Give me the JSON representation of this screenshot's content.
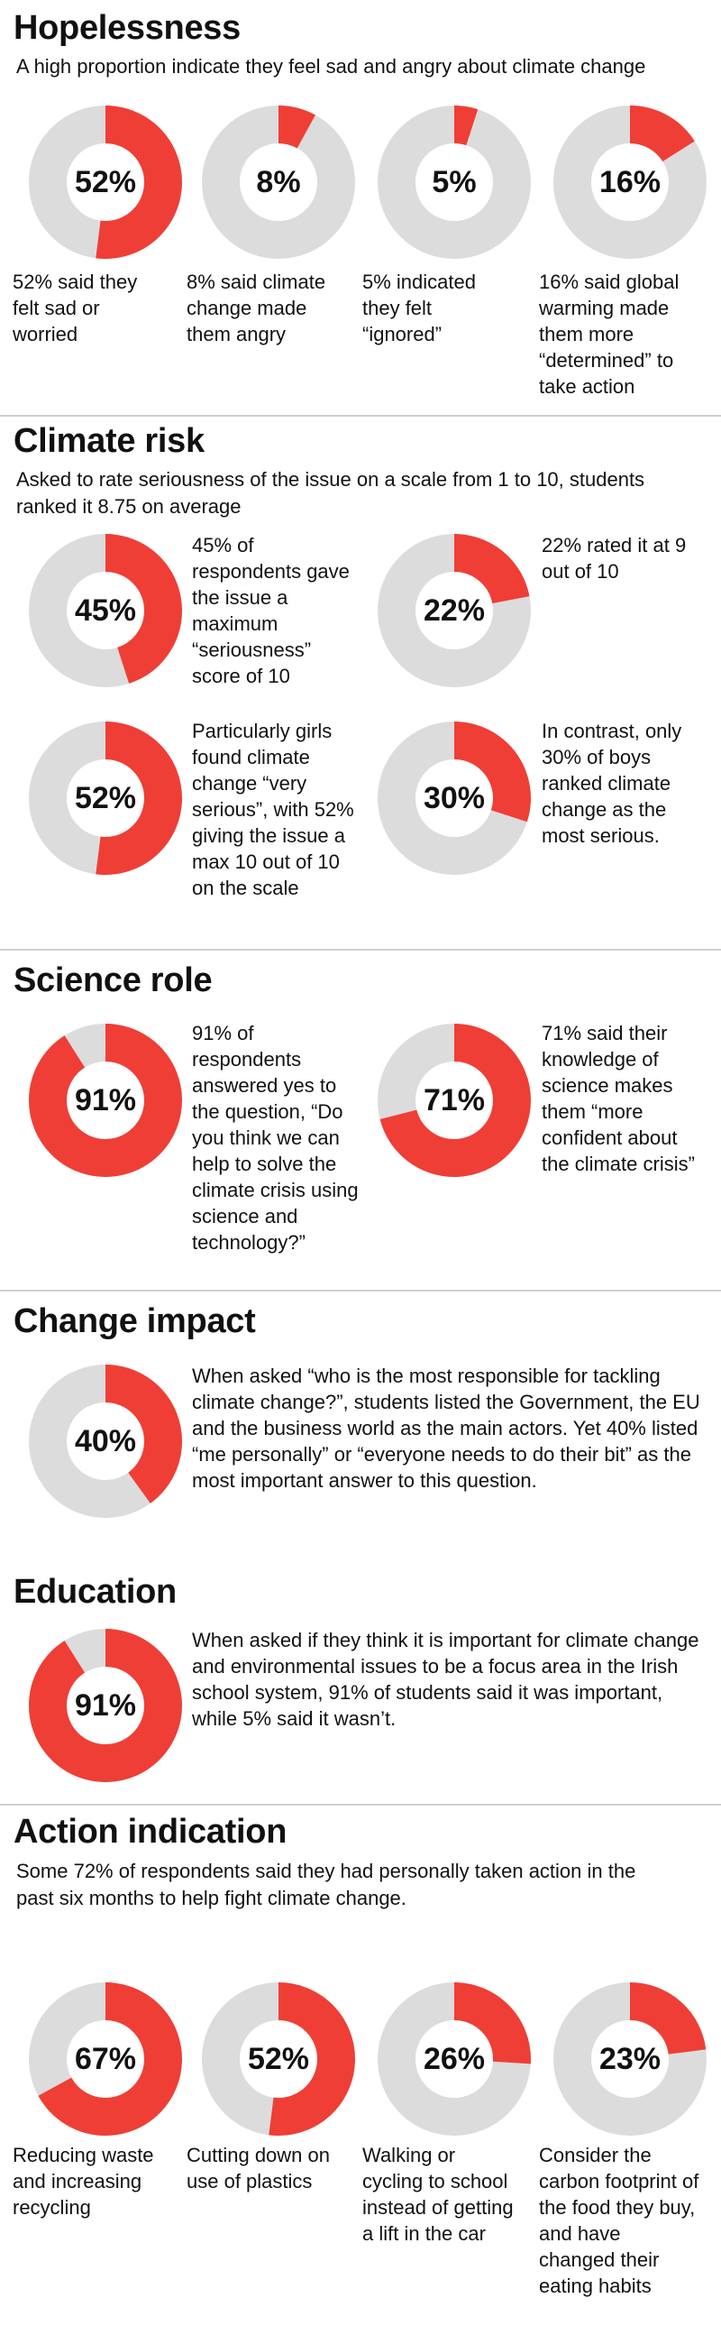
{
  "colors": {
    "fill": "#ef3e36",
    "track": "#dcdcdc",
    "divider": "#cfcfcf"
  },
  "sections": {
    "hopelessness": {
      "title": "Hopelessness",
      "subtitle": "A high proportion indicate they feel sad and angry about climate change",
      "items": [
        {
          "value": 52,
          "label": "52%",
          "caption": "52% said they felt sad or worried"
        },
        {
          "value": 8,
          "label": "8%",
          "caption": "8%  said climate change made them angry"
        },
        {
          "value": 5,
          "label": "5%",
          "caption": "5% indicated they felt “ignored”"
        },
        {
          "value": 16,
          "label": "16%",
          "caption": "16% said global warming made them more “determined” to take action"
        }
      ]
    },
    "climate_risk": {
      "title": "Climate risk",
      "subtitle": "Asked to rate seriousness of the issue on a scale from 1 to 10, students ranked it 8.75 on average",
      "items": [
        {
          "value": 45,
          "label": "45%",
          "caption": "45% of respondents gave the issue a maximum “seriousness” score of 10"
        },
        {
          "value": 22,
          "label": "22%",
          "caption": "22% rated it at 9 out of 10"
        },
        {
          "value": 52,
          "label": "52%",
          "caption": "Particularly girls found climate change “very serious”, with 52% giving the issue a max 10 out of 10 on the scale"
        },
        {
          "value": 30,
          "label": "30%",
          "caption": "In contrast, only 30% of boys ranked climate change as the most serious."
        }
      ]
    },
    "science_role": {
      "title": "Science role",
      "items": [
        {
          "value": 91,
          "label": "91%",
          "caption": "91% of respondents answered yes to the question, “Do you think we can help to solve the climate crisis using science and technology?”"
        },
        {
          "value": 71,
          "label": "71%",
          "caption": "71% said their knowledge of science makes them “more confident about the climate crisis”"
        }
      ]
    },
    "change_impact": {
      "title": "Change impact",
      "items": [
        {
          "value": 40,
          "label": "40%",
          "caption": "When asked “who is the most responsible for tackling climate change?”, students listed the Government, the EU and the business world as the main actors. Yet 40% listed “me personally” or “everyone needs to do their bit” as the most important answer to this question."
        }
      ]
    },
    "education": {
      "title": "Education",
      "items": [
        {
          "value": 91,
          "label": "91%",
          "caption": "When asked if they think it is important for climate change and environmental issues to be a focus area in the Irish school system, 91% of students said it was important, while 5% said it wasn’t."
        }
      ]
    },
    "action_indication": {
      "title": "Action indication",
      "subtitle": "Some 72% of respondents said they had personally taken action in the past six months to help fight climate change.",
      "items": [
        {
          "value": 67,
          "label": "67%",
          "caption": "Reducing waste and increasing recycling"
        },
        {
          "value": 52,
          "label": "52%",
          "caption": "Cutting down on use of plastics"
        },
        {
          "value": 26,
          "label": "26%",
          "caption": "Walking or cycling to school instead of getting a lift in the car"
        },
        {
          "value": 23,
          "label": "23%",
          "caption": "Consider the carbon footprint of the food they buy, and have changed their eating habits"
        }
      ]
    }
  },
  "chart_data": [
    {
      "type": "pie",
      "title": "Hopelessness",
      "categories": [
        "Sad or worried",
        "Angry",
        "Ignored",
        "Determined to take action"
      ],
      "values": [
        52,
        8,
        5,
        16
      ]
    },
    {
      "type": "pie",
      "title": "Climate risk",
      "categories": [
        "Max seriousness score of 10",
        "Rated 9 out of 10",
        "Girls giving max 10",
        "Boys ranking most serious"
      ],
      "values": [
        45,
        22,
        52,
        30
      ]
    },
    {
      "type": "pie",
      "title": "Science role",
      "categories": [
        "Science and technology can help",
        "More confident about the climate crisis"
      ],
      "values": [
        91,
        71
      ]
    },
    {
      "type": "pie",
      "title": "Change impact",
      "categories": [
        "Me personally / everyone needs to do their bit"
      ],
      "values": [
        40
      ]
    },
    {
      "type": "pie",
      "title": "Education",
      "categories": [
        "Important focus area in school"
      ],
      "values": [
        91
      ]
    },
    {
      "type": "pie",
      "title": "Action indication",
      "categories": [
        "Reducing waste and increasing recycling",
        "Cutting down on use of plastics",
        "Walking or cycling to school",
        "Changed eating habits"
      ],
      "values": [
        67,
        52,
        26,
        23
      ]
    }
  ]
}
